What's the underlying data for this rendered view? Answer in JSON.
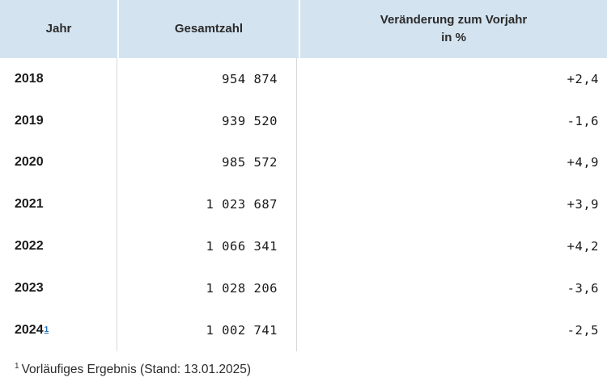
{
  "table": {
    "headers": {
      "year": "Jahr",
      "total": "Gesamtzahl",
      "change_line1": "Veränderung zum Vorjahr",
      "change_line2": "in %"
    },
    "rows": [
      {
        "year": "2018",
        "footnote": "",
        "total": "954 874",
        "change": "+2,4"
      },
      {
        "year": "2019",
        "footnote": "",
        "total": "939 520",
        "change": "-1,6"
      },
      {
        "year": "2020",
        "footnote": "",
        "total": "985 572",
        "change": "+4,9"
      },
      {
        "year": "2021",
        "footnote": "",
        "total": "1 023 687",
        "change": "+3,9"
      },
      {
        "year": "2022",
        "footnote": "",
        "total": "1 066 341",
        "change": "+4,2"
      },
      {
        "year": "2023",
        "footnote": "",
        "total": "1 028 206",
        "change": "-3,6"
      },
      {
        "year": "2024",
        "footnote": "1",
        "total": "1 002 741",
        "change": "-2,5"
      }
    ]
  },
  "footnote": {
    "marker": "1",
    "text": "Vorläufiges Ergebnis (Stand: 13.01.2025)"
  },
  "colors": {
    "header_bg": "#d4e3f0",
    "footnote_link": "#1c6fb8"
  }
}
